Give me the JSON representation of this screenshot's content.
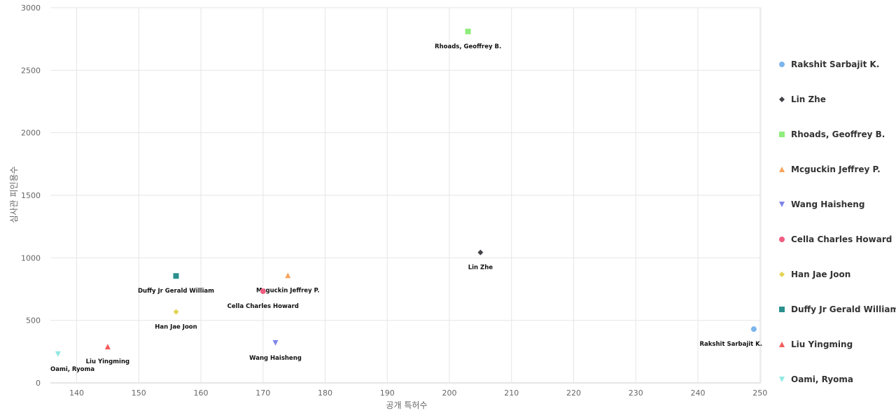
{
  "chart_data": {
    "type": "scatter",
    "title": "",
    "xlabel": "공개 특허수",
    "ylabel": "심사관 피인용수",
    "xlim": [
      136,
      250
    ],
    "ylim": [
      0,
      3000
    ],
    "x_ticks": [
      140,
      150,
      160,
      170,
      180,
      190,
      200,
      210,
      220,
      230,
      240,
      250
    ],
    "y_ticks": [
      0,
      500,
      1000,
      1500,
      2000,
      2500,
      3000
    ],
    "grid": true,
    "legend_position": "right",
    "series": [
      {
        "name": "Rakshit Sarbajit K.",
        "x": 249,
        "y": 430,
        "color": "#7cb5ec",
        "marker": "circle"
      },
      {
        "name": "Lin Zhe",
        "x": 205,
        "y": 1043,
        "color": "#434348",
        "marker": "diamond"
      },
      {
        "name": "Rhoads, Geoffrey B.",
        "x": 203,
        "y": 2810,
        "color": "#90ed7d",
        "marker": "square"
      },
      {
        "name": "Mcguckin Jeffrey P.",
        "x": 174,
        "y": 860,
        "color": "#f7a35c",
        "marker": "triangle"
      },
      {
        "name": "Wang Haisheng",
        "x": 172,
        "y": 320,
        "color": "#8085e9",
        "marker": "triangle-down"
      },
      {
        "name": "Cella Charles Howard",
        "x": 170,
        "y": 733,
        "color": "#f15c80",
        "marker": "circle"
      },
      {
        "name": "Han Jae Joon",
        "x": 156,
        "y": 568,
        "color": "#e4d354",
        "marker": "diamond"
      },
      {
        "name": "Duffy Jr Gerald William",
        "x": 156,
        "y": 855,
        "color": "#2b908f",
        "marker": "square"
      },
      {
        "name": "Liu Yingming",
        "x": 145,
        "y": 290,
        "color": "#f45b5b",
        "marker": "triangle"
      },
      {
        "name": "Oami, Ryoma",
        "x": 137,
        "y": 230,
        "color": "#91e8e1",
        "marker": "triangle-down"
      }
    ]
  }
}
